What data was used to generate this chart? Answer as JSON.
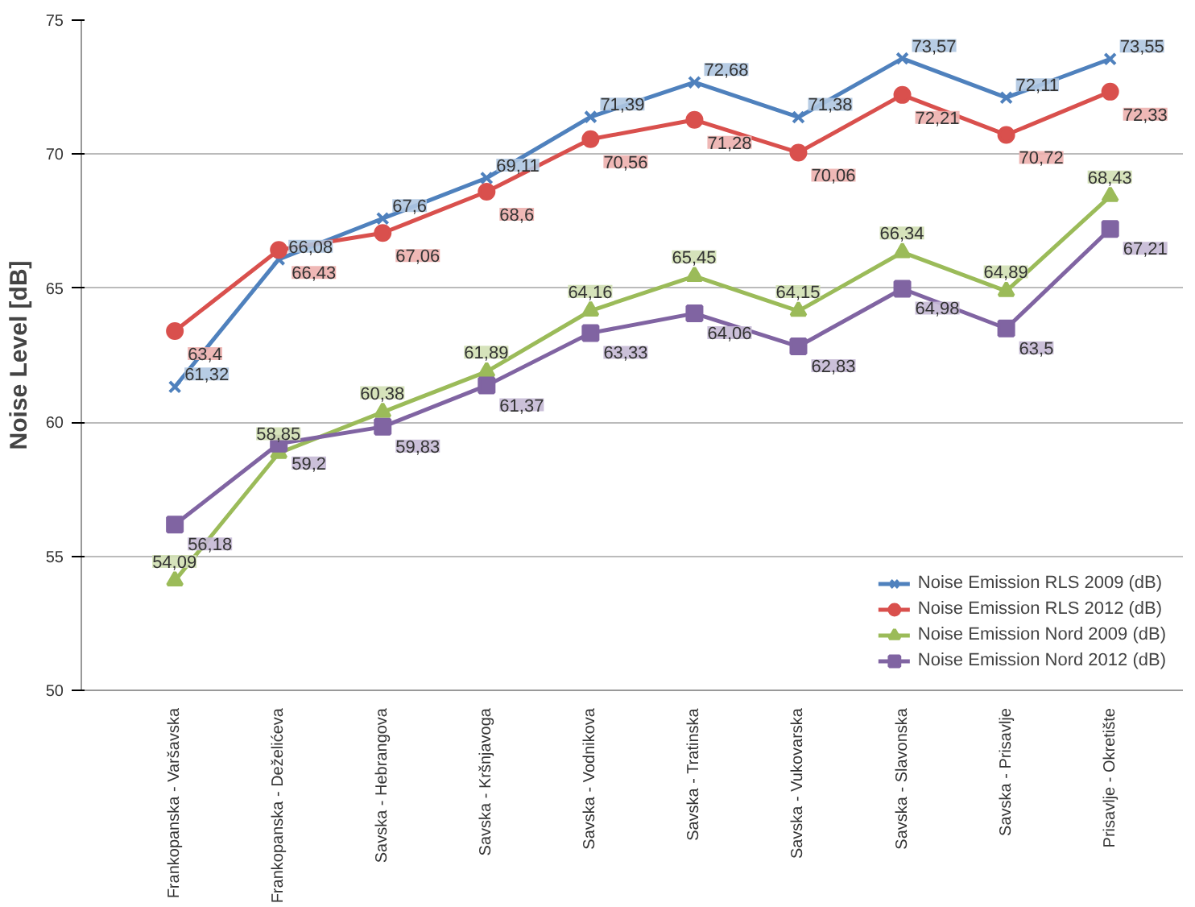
{
  "chart_data": {
    "type": "line",
    "ylabel": "Noise Level [dB]",
    "categories": [
      "Frankopanska - Varšavska",
      "Frankopanska - Deželićeva",
      "Savska - Hebrangova",
      "Savska - Kršnjavoga",
      "Savska - Vodnikova",
      "Savska - Tratinska",
      "Savska - Vukovarska",
      "Savska - Slavonska",
      "Savska - Prisavlje",
      "Prisavlje - Okretište"
    ],
    "series": [
      {
        "name": "Noise Emission RLS 2009 (dB)",
        "color": "#4f81bd",
        "marker": "cross",
        "values": [
          61.32,
          66.08,
          67.6,
          69.11,
          71.39,
          72.68,
          71.38,
          73.57,
          72.11,
          73.55
        ],
        "value_labels": [
          "61,32",
          "66,08",
          "67,6",
          "69,11",
          "71,39",
          "72,68",
          "71,38",
          "73,57",
          "72,11",
          "73,55"
        ]
      },
      {
        "name": "Noise Emission RLS 2012 (dB)",
        "color": "#d9504d",
        "marker": "circle",
        "values": [
          63.4,
          66.43,
          67.06,
          68.6,
          70.56,
          71.28,
          70.06,
          72.21,
          70.72,
          72.33
        ],
        "value_labels": [
          "63,4",
          "66,43",
          "67,06",
          "68,6",
          "70,56",
          "71,28",
          "70,06",
          "72,21",
          "70,72",
          "72,33"
        ]
      },
      {
        "name": "Noise Emission Nord 2009 (dB)",
        "color": "#9bbb59",
        "marker": "triangle",
        "values": [
          54.09,
          58.85,
          60.38,
          61.89,
          64.16,
          65.45,
          64.15,
          66.34,
          64.89,
          68.43
        ],
        "value_labels": [
          "54,09",
          "58,85",
          "60,38",
          "61,89",
          "64,16",
          "65,45",
          "64,15",
          "66,34",
          "64,89",
          "68,43"
        ]
      },
      {
        "name": "Noise Emission Nord 2012 (dB)",
        "color": "#8064a2",
        "marker": "square",
        "values": [
          56.18,
          59.2,
          59.83,
          61.37,
          63.33,
          64.06,
          62.83,
          64.98,
          63.5,
          67.21
        ],
        "value_labels": [
          "56,18",
          "59,2",
          "59,83",
          "61,37",
          "63,33",
          "64,06",
          "62,83",
          "64,98",
          "63,5",
          "67,21"
        ]
      }
    ],
    "ylim": [
      50,
      75
    ],
    "yticks": [
      50,
      55,
      60,
      65,
      70,
      75
    ],
    "grid": "y",
    "legend": "bottom right",
    "line_style": "solid"
  }
}
